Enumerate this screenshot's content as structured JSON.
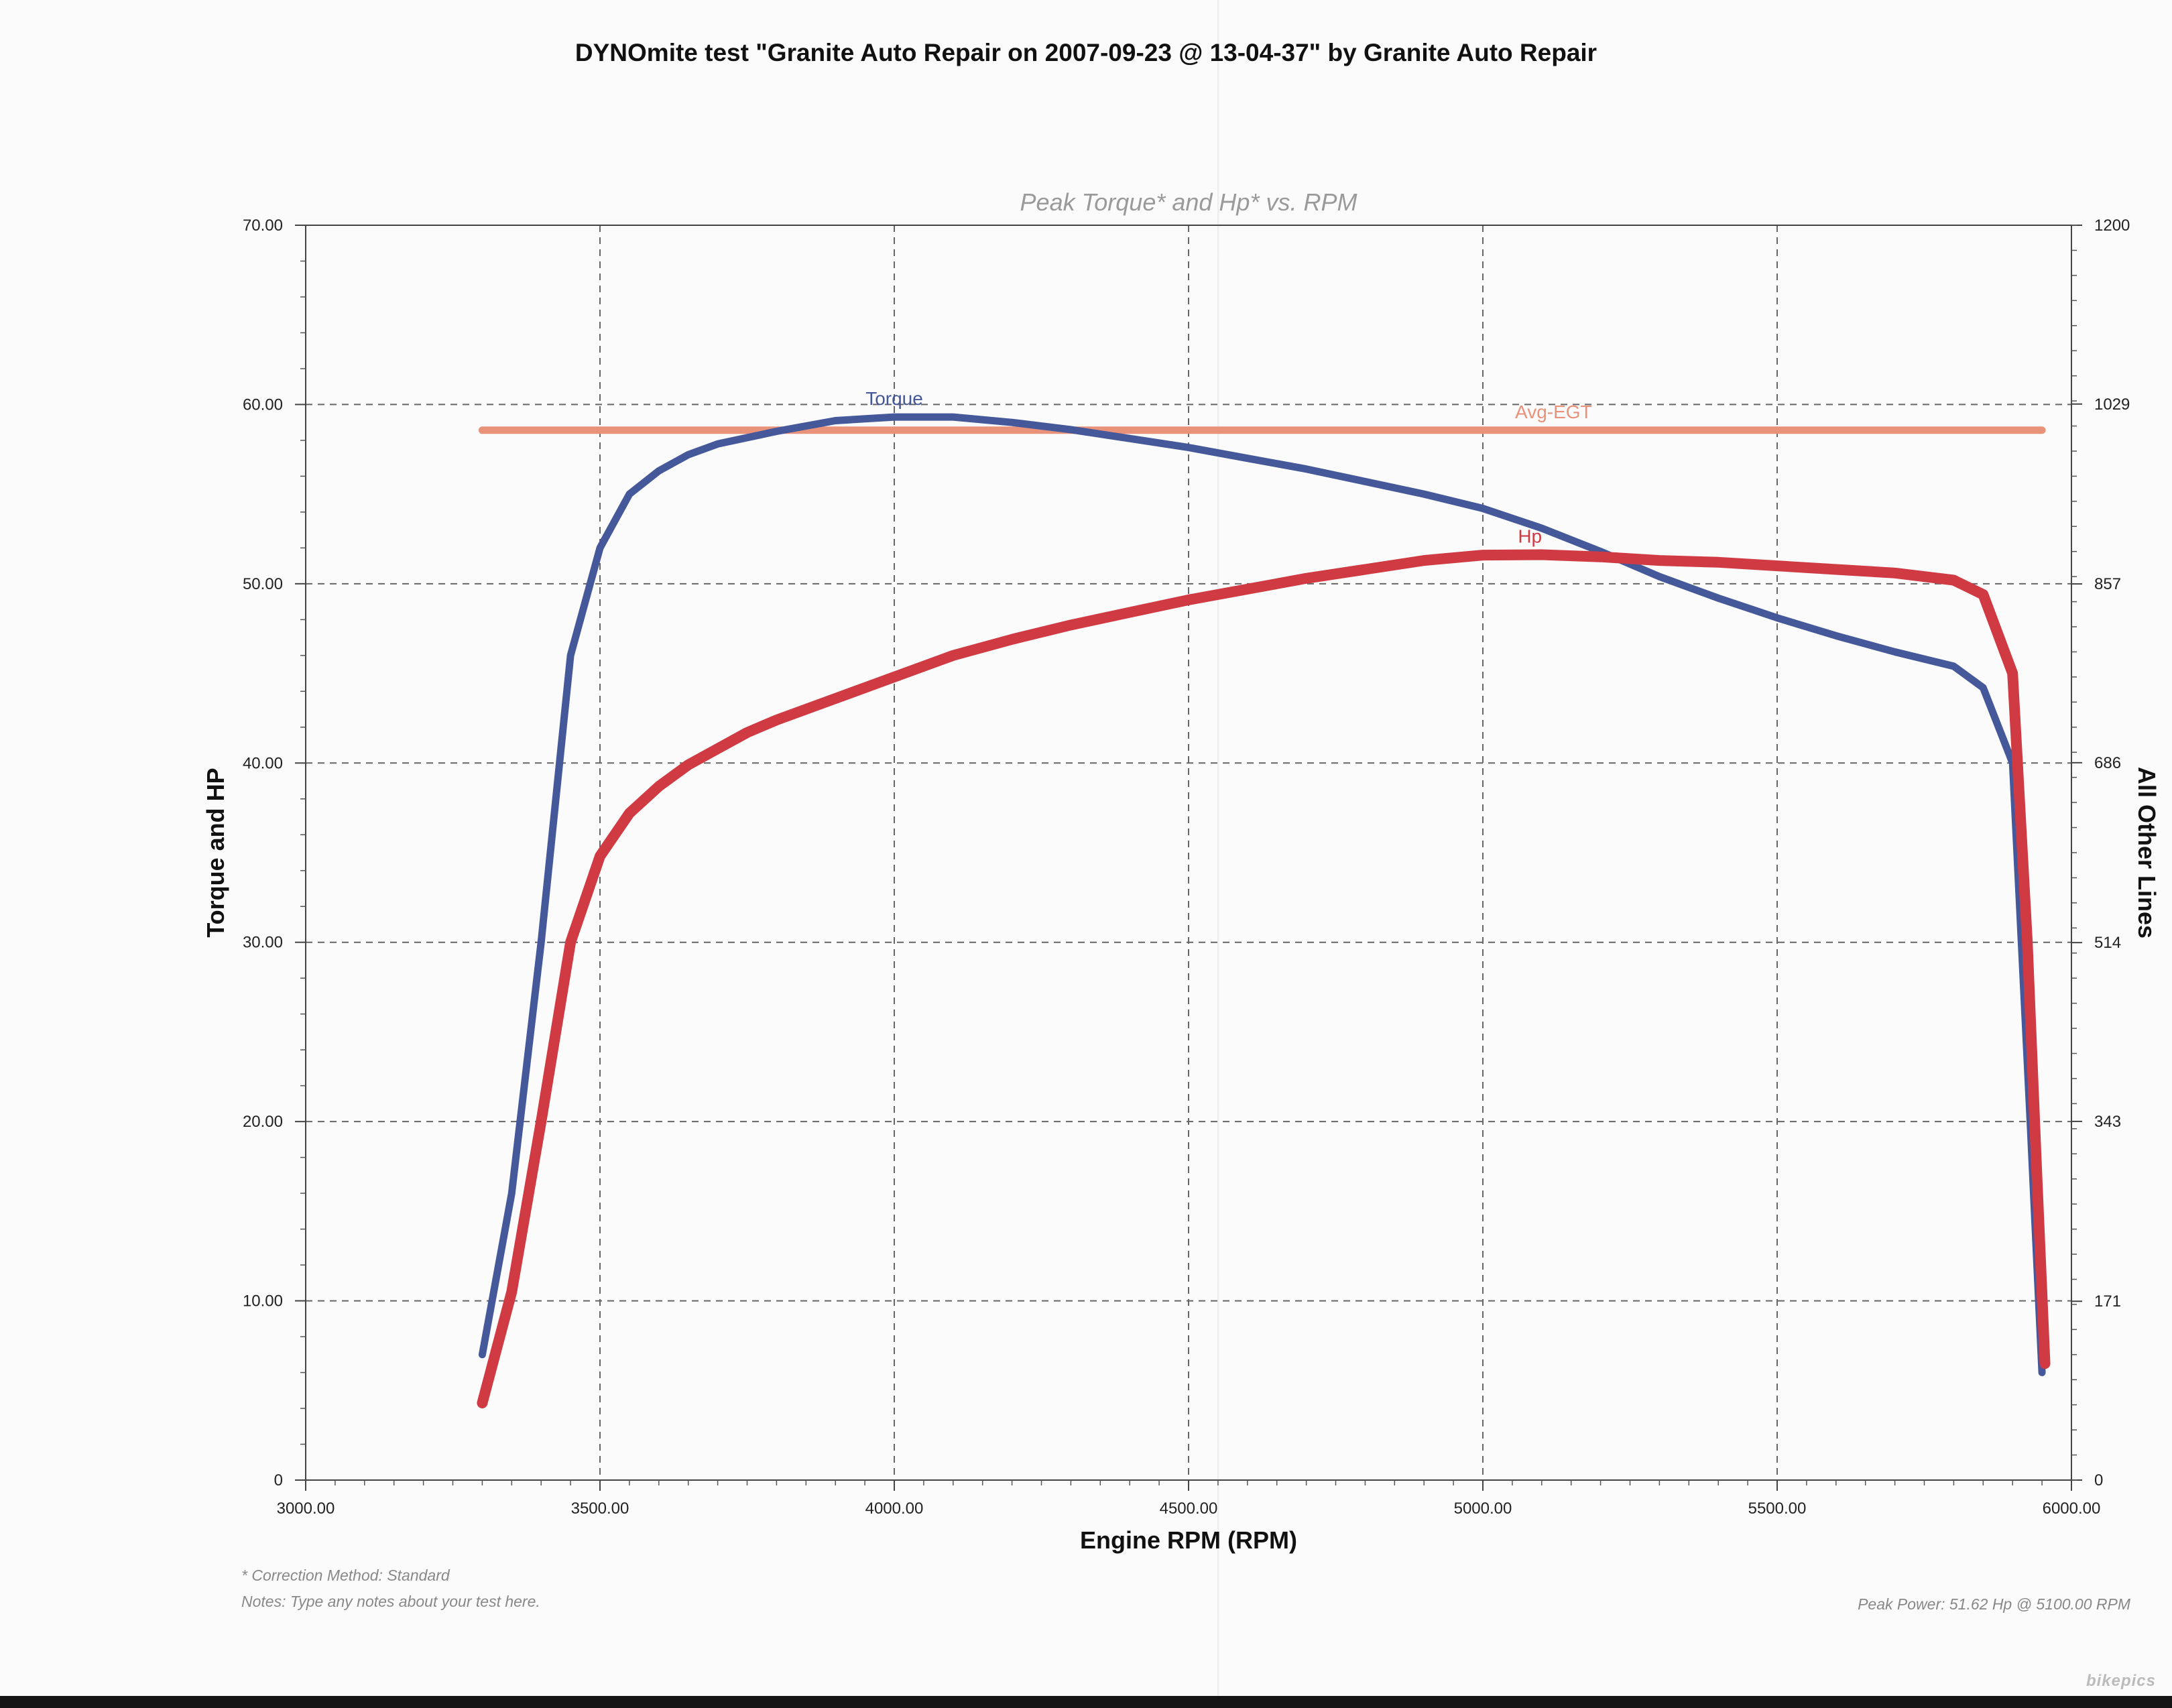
{
  "header": {
    "title": "DYNOmite test \"Granite Auto Repair on 2007-09-23 @ 13-04-37\" by Granite Auto Repair"
  },
  "footer": {
    "correction": "* Correction Method: Standard",
    "notes": "Notes: Type any notes about your test here.",
    "peak_power": "Peak Power: 51.62 Hp @ 5100.00 RPM"
  },
  "watermark": "bikepics",
  "chart_data": {
    "type": "line",
    "title": "Peak Torque* and Hp* vs. RPM",
    "xlabel": "Engine RPM (RPM)",
    "ylabel": "Torque and HP",
    "y2label": "All Other Lines",
    "xlim": [
      3000,
      6000
    ],
    "ylim": [
      0,
      70
    ],
    "y2lim": [
      0,
      1200
    ],
    "x_ticks": [
      "3000.00",
      "3500.00",
      "4000.00",
      "4500.00",
      "5000.00",
      "5500.00",
      "6000.00"
    ],
    "y_ticks": [
      "0",
      "10.00",
      "20.00",
      "30.00",
      "40.00",
      "50.00",
      "60.00",
      "70.00"
    ],
    "y2_ticks": [
      "0",
      "171",
      "343",
      "514",
      "686",
      "857",
      "1029",
      "1200"
    ],
    "grid": true,
    "series": [
      {
        "name": "Torque",
        "color": "#44589a",
        "points": [
          [
            3300,
            7
          ],
          [
            3350,
            16
          ],
          [
            3400,
            30
          ],
          [
            3450,
            46
          ],
          [
            3500,
            52
          ],
          [
            3550,
            55
          ],
          [
            3600,
            56.3
          ],
          [
            3650,
            57.2
          ],
          [
            3700,
            57.8
          ],
          [
            3800,
            58.5
          ],
          [
            3900,
            59.1
          ],
          [
            4000,
            59.3
          ],
          [
            4100,
            59.3
          ],
          [
            4200,
            59
          ],
          [
            4300,
            58.6
          ],
          [
            4400,
            58.1
          ],
          [
            4500,
            57.6
          ],
          [
            4600,
            57
          ],
          [
            4700,
            56.4
          ],
          [
            4800,
            55.7
          ],
          [
            4900,
            55
          ],
          [
            5000,
            54.2
          ],
          [
            5100,
            53.1
          ],
          [
            5200,
            51.8
          ],
          [
            5300,
            50.4
          ],
          [
            5400,
            49.2
          ],
          [
            5500,
            48.1
          ],
          [
            5600,
            47.1
          ],
          [
            5700,
            46.2
          ],
          [
            5800,
            45.4
          ],
          [
            5850,
            44.2
          ],
          [
            5900,
            40
          ],
          [
            5930,
            20
          ],
          [
            5950,
            6
          ]
        ]
      },
      {
        "name": "Hp",
        "color": "#d03a43",
        "points": [
          [
            3300,
            4.3
          ],
          [
            3350,
            10.5
          ],
          [
            3400,
            20
          ],
          [
            3450,
            30
          ],
          [
            3500,
            34.8
          ],
          [
            3550,
            37.2
          ],
          [
            3600,
            38.7
          ],
          [
            3650,
            39.9
          ],
          [
            3700,
            40.8
          ],
          [
            3750,
            41.7
          ],
          [
            3800,
            42.4
          ],
          [
            3900,
            43.6
          ],
          [
            4000,
            44.8
          ],
          [
            4100,
            46
          ],
          [
            4200,
            46.9
          ],
          [
            4300,
            47.7
          ],
          [
            4400,
            48.4
          ],
          [
            4500,
            49.1
          ],
          [
            4600,
            49.7
          ],
          [
            4700,
            50.3
          ],
          [
            4800,
            50.8
          ],
          [
            4900,
            51.3
          ],
          [
            5000,
            51.6
          ],
          [
            5100,
            51.62
          ],
          [
            5200,
            51.5
          ],
          [
            5300,
            51.3
          ],
          [
            5400,
            51.2
          ],
          [
            5500,
            51
          ],
          [
            5600,
            50.8
          ],
          [
            5700,
            50.6
          ],
          [
            5800,
            50.2
          ],
          [
            5850,
            49.4
          ],
          [
            5900,
            45
          ],
          [
            5925,
            30
          ],
          [
            5940,
            18
          ],
          [
            5955,
            6.5
          ]
        ]
      },
      {
        "name": "Avg-EGT",
        "color": "#e9927a",
        "axis": "right",
        "points": [
          [
            3300,
            1004
          ],
          [
            5950,
            1004
          ]
        ]
      }
    ]
  }
}
